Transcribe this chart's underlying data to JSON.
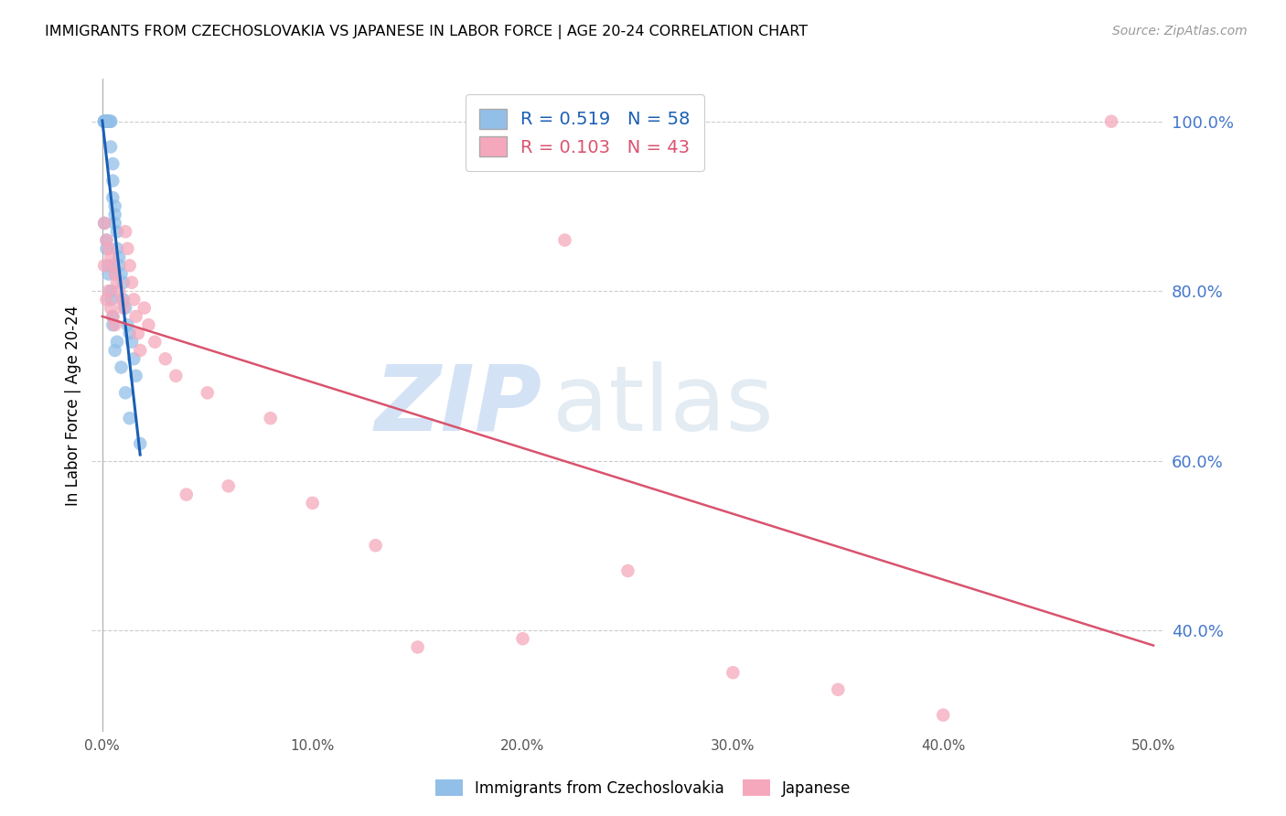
{
  "title": "IMMIGRANTS FROM CZECHOSLOVAKIA VS JAPANESE IN LABOR FORCE | AGE 20-24 CORRELATION CHART",
  "source": "Source: ZipAtlas.com",
  "ylabel": "In Labor Force | Age 20-24",
  "xlim": [
    -0.005,
    0.505
  ],
  "ylim": [
    0.28,
    1.05
  ],
  "yticks": [
    0.4,
    0.6,
    0.8,
    1.0
  ],
  "xticks": [
    0.0,
    0.1,
    0.2,
    0.3,
    0.4,
    0.5
  ],
  "xtick_labels": [
    "0.0%",
    "10.0%",
    "20.0%",
    "30.0%",
    "40.0%",
    "50.0%"
  ],
  "ytick_labels": [
    "40.0%",
    "60.0%",
    "80.0%",
    "100.0%"
  ],
  "blue_color": "#92BFE8",
  "pink_color": "#F5A8BC",
  "blue_line_color": "#1A5FB4",
  "pink_line_color": "#D9536E",
  "R_blue": 0.519,
  "N_blue": 58,
  "R_pink": 0.103,
  "N_pink": 43,
  "legend_label_blue": "Immigrants from Czechoslovakia",
  "legend_label_pink": "Japanese",
  "watermark_zip": "ZIP",
  "watermark_atlas": "atlas",
  "blue_x": [
    0.001,
    0.001,
    0.001,
    0.001,
    0.001,
    0.001,
    0.001,
    0.001,
    0.001,
    0.001,
    0.002,
    0.002,
    0.002,
    0.002,
    0.002,
    0.002,
    0.002,
    0.003,
    0.003,
    0.003,
    0.003,
    0.004,
    0.004,
    0.004,
    0.005,
    0.005,
    0.005,
    0.006,
    0.006,
    0.006,
    0.007,
    0.007,
    0.008,
    0.008,
    0.009,
    0.01,
    0.01,
    0.011,
    0.012,
    0.013,
    0.014,
    0.015,
    0.016,
    0.002,
    0.003,
    0.004,
    0.005,
    0.006,
    0.001,
    0.002,
    0.003,
    0.004,
    0.005,
    0.007,
    0.009,
    0.011,
    0.013,
    0.018
  ],
  "blue_y": [
    1.0,
    1.0,
    1.0,
    1.0,
    1.0,
    1.0,
    1.0,
    1.0,
    1.0,
    1.0,
    1.0,
    1.0,
    1.0,
    1.0,
    1.0,
    1.0,
    1.0,
    1.0,
    1.0,
    1.0,
    1.0,
    1.0,
    1.0,
    0.97,
    0.95,
    0.93,
    0.91,
    0.9,
    0.89,
    0.88,
    0.87,
    0.85,
    0.84,
    0.83,
    0.82,
    0.81,
    0.79,
    0.78,
    0.76,
    0.75,
    0.74,
    0.72,
    0.7,
    0.85,
    0.82,
    0.79,
    0.76,
    0.73,
    0.88,
    0.86,
    0.83,
    0.8,
    0.77,
    0.74,
    0.71,
    0.68,
    0.65,
    0.62
  ],
  "pink_x": [
    0.001,
    0.001,
    0.002,
    0.002,
    0.003,
    0.003,
    0.004,
    0.004,
    0.005,
    0.005,
    0.006,
    0.006,
    0.007,
    0.008,
    0.009,
    0.01,
    0.011,
    0.012,
    0.013,
    0.014,
    0.015,
    0.016,
    0.017,
    0.018,
    0.02,
    0.022,
    0.025,
    0.03,
    0.035,
    0.04,
    0.05,
    0.06,
    0.08,
    0.1,
    0.15,
    0.2,
    0.25,
    0.3,
    0.35,
    0.4,
    0.48,
    0.22,
    0.13
  ],
  "pink_y": [
    0.88,
    0.83,
    0.86,
    0.79,
    0.85,
    0.8,
    0.84,
    0.78,
    0.83,
    0.77,
    0.82,
    0.76,
    0.81,
    0.8,
    0.79,
    0.78,
    0.87,
    0.85,
    0.83,
    0.81,
    0.79,
    0.77,
    0.75,
    0.73,
    0.78,
    0.76,
    0.74,
    0.72,
    0.7,
    0.56,
    0.68,
    0.57,
    0.65,
    0.55,
    0.38,
    0.39,
    0.47,
    0.35,
    0.33,
    0.3,
    1.0,
    0.86,
    0.5
  ]
}
